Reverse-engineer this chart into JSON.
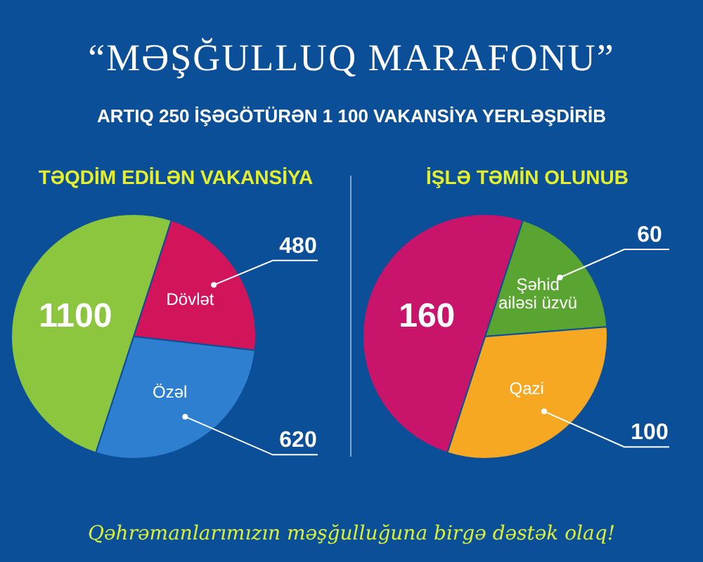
{
  "chart_data": [
    {
      "type": "other",
      "title": "“MƏŞĞULLUQ MARAFONU”",
      "subtitle": "ARTIQ 250 İŞƏGÖTÜRƏN 1 100 VAKANSİYA YERLƏŞDİRİB",
      "annotations": [
        "Qəhrəmanlarımızın məşğulluğuna birgə dəstək olaq!"
      ]
    },
    {
      "type": "pie",
      "title": "TƏQDİM EDİLƏN VAKANSİYA",
      "categories": [
        "Dövlət",
        "Özəl",
        null
      ],
      "values": [
        480,
        620,
        1100
      ],
      "colors": [
        "#d2145a",
        "#2f7fd0",
        "#8cc63f"
      ],
      "data_labels": true
    },
    {
      "type": "pie",
      "title": "İŞLƏ TƏMİN OLUNUB",
      "categories": [
        "Şəhid ailəsi üzvü",
        "Qazi",
        null
      ],
      "values": [
        60,
        100,
        160
      ],
      "colors": [
        "#5aa532",
        "#f7a823",
        "#c8146a"
      ],
      "data_labels": true
    }
  ]
}
